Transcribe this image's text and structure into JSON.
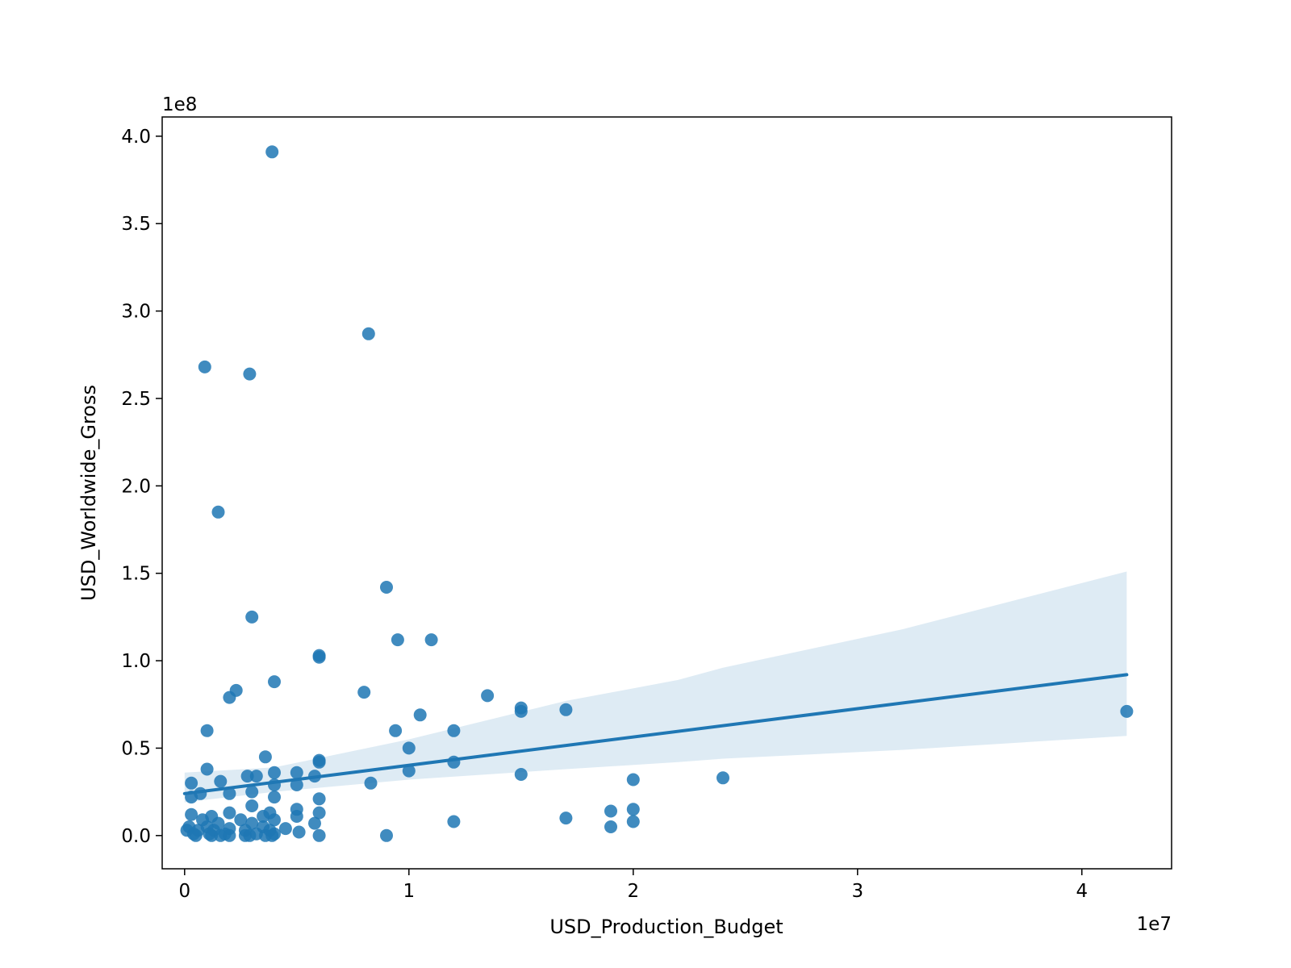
{
  "chart_data": {
    "type": "scatter",
    "title": "",
    "xlabel": "USD_Production_Budget",
    "ylabel": "USD_Worldwide_Gross",
    "x_offset_text": "1e7",
    "y_offset_text": "1e8",
    "xlim": [
      -1000000,
      44000000
    ],
    "ylim": [
      -19000000,
      411000000
    ],
    "x_ticks": [
      {
        "value": 0,
        "label": "0"
      },
      {
        "value": 10000000,
        "label": "1"
      },
      {
        "value": 20000000,
        "label": "2"
      },
      {
        "value": 30000000,
        "label": "3"
      },
      {
        "value": 40000000,
        "label": "4"
      }
    ],
    "y_ticks": [
      {
        "value": 0,
        "label": "0.0"
      },
      {
        "value": 50000000,
        "label": "0.5"
      },
      {
        "value": 100000000,
        "label": "1.0"
      },
      {
        "value": 150000000,
        "label": "1.5"
      },
      {
        "value": 200000000,
        "label": "2.0"
      },
      {
        "value": 250000000,
        "label": "2.5"
      },
      {
        "value": 300000000,
        "label": "3.0"
      },
      {
        "value": 350000000,
        "label": "3.5"
      },
      {
        "value": 400000000,
        "label": "4.0"
      }
    ],
    "grid": false,
    "marker_color": "#1f77b4",
    "line_color": "#1f77b4",
    "band_color": "#1f77b4",
    "regression_line": {
      "x": [
        0,
        42000000
      ],
      "y": [
        24000000,
        92000000
      ]
    },
    "confidence_band": {
      "x": [
        0,
        4000000,
        10000000,
        17000000,
        22000000,
        24000000,
        32000000,
        42000000
      ],
      "upper": [
        36000000,
        39000000,
        55000000,
        77000000,
        89000000,
        96000000,
        118000000,
        151000000
      ],
      "lower": [
        19000000,
        25000000,
        32000000,
        38000000,
        42000000,
        44000000,
        49000000,
        57000000
      ]
    },
    "points": [
      [
        3900000,
        391000000
      ],
      [
        8200000,
        287000000
      ],
      [
        900000,
        268000000
      ],
      [
        2900000,
        264000000
      ],
      [
        1500000,
        185000000
      ],
      [
        9000000,
        142000000
      ],
      [
        3000000,
        125000000
      ],
      [
        9500000,
        112000000
      ],
      [
        11000000,
        112000000
      ],
      [
        6000000,
        102000000
      ],
      [
        6000000,
        103000000
      ],
      [
        4000000,
        88000000
      ],
      [
        2300000,
        83000000
      ],
      [
        2000000,
        79000000
      ],
      [
        8000000,
        82000000
      ],
      [
        13500000,
        80000000
      ],
      [
        15000000,
        73000000
      ],
      [
        15000000,
        71000000
      ],
      [
        17000000,
        72000000
      ],
      [
        42000000,
        71000000
      ],
      [
        10500000,
        69000000
      ],
      [
        1000000,
        60000000
      ],
      [
        9400000,
        60000000
      ],
      [
        12000000,
        60000000
      ],
      [
        10000000,
        50000000
      ],
      [
        3600000,
        45000000
      ],
      [
        6000000,
        43000000
      ],
      [
        6000000,
        42000000
      ],
      [
        12000000,
        42000000
      ],
      [
        1000000,
        38000000
      ],
      [
        10000000,
        37000000
      ],
      [
        4000000,
        36000000
      ],
      [
        5000000,
        36000000
      ],
      [
        2800000,
        34000000
      ],
      [
        3200000,
        34000000
      ],
      [
        15000000,
        35000000
      ],
      [
        5800000,
        34000000
      ],
      [
        1600000,
        31000000
      ],
      [
        300000,
        30000000
      ],
      [
        8300000,
        30000000
      ],
      [
        20000000,
        32000000
      ],
      [
        24000000,
        33000000
      ],
      [
        4000000,
        29000000
      ],
      [
        5000000,
        29000000
      ],
      [
        700000,
        24000000
      ],
      [
        2000000,
        24000000
      ],
      [
        3000000,
        25000000
      ],
      [
        300000,
        22000000
      ],
      [
        4000000,
        22000000
      ],
      [
        6000000,
        21000000
      ],
      [
        3000000,
        17000000
      ],
      [
        5000000,
        15000000
      ],
      [
        20000000,
        15000000
      ],
      [
        19000000,
        14000000
      ],
      [
        2000000,
        13000000
      ],
      [
        3800000,
        13000000
      ],
      [
        6000000,
        13000000
      ],
      [
        300000,
        12000000
      ],
      [
        1200000,
        11000000
      ],
      [
        3500000,
        11000000
      ],
      [
        5000000,
        11000000
      ],
      [
        17000000,
        10000000
      ],
      [
        800000,
        9000000
      ],
      [
        2500000,
        9000000
      ],
      [
        4000000,
        9000000
      ],
      [
        12000000,
        8000000
      ],
      [
        20000000,
        8000000
      ],
      [
        1500000,
        7000000
      ],
      [
        3000000,
        7000000
      ],
      [
        5800000,
        7000000
      ],
      [
        19000000,
        5000000
      ],
      [
        200000,
        5000000
      ],
      [
        1000000,
        5000000
      ],
      [
        2000000,
        4000000
      ],
      [
        3500000,
        5000000
      ],
      [
        4500000,
        4000000
      ],
      [
        100000,
        3000000
      ],
      [
        600000,
        3000000
      ],
      [
        1300000,
        3000000
      ],
      [
        2700000,
        3000000
      ],
      [
        3800000,
        3000000
      ],
      [
        5100000,
        2000000
      ],
      [
        400000,
        1000000
      ],
      [
        1100000,
        1000000
      ],
      [
        1800000,
        1000000
      ],
      [
        3200000,
        1000000
      ],
      [
        4000000,
        1000000
      ],
      [
        500000,
        0
      ],
      [
        1200000,
        0
      ],
      [
        1600000,
        0
      ],
      [
        2000000,
        0
      ],
      [
        2700000,
        0
      ],
      [
        3600000,
        0
      ],
      [
        3900000,
        0
      ],
      [
        6000000,
        0
      ],
      [
        9000000,
        0
      ],
      [
        2900000,
        0
      ]
    ]
  }
}
